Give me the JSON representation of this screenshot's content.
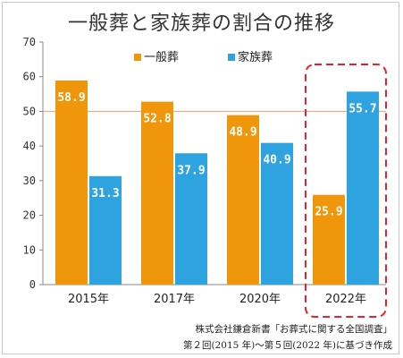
{
  "chart_data": {
    "type": "bar",
    "title": "一般葬と家族葬の割合の推移",
    "categories": [
      "2015年",
      "2017年",
      "2020年",
      "2022年"
    ],
    "series": [
      {
        "name": "一般葬",
        "values": [
          58.9,
          52.8,
          48.9,
          25.9
        ],
        "color": "#f0960a"
      },
      {
        "name": "家族葬",
        "values": [
          31.3,
          37.9,
          40.9,
          55.7
        ],
        "color": "#2ea3df"
      }
    ],
    "data_labels": {
      "一般葬": [
        "58.9",
        "52.8",
        "48.9",
        "25.9"
      ],
      "家族葬": [
        "31.3",
        "37.9",
        "40.9",
        "55.7"
      ]
    },
    "ylim": [
      0,
      70
    ],
    "yticks": [
      "0",
      "10",
      "20",
      "30",
      "40",
      "50",
      "60",
      "70"
    ],
    "reference_line": {
      "value": 50,
      "color": "#e8a070"
    },
    "highlight": {
      "category": "2022年",
      "color": "#e8212a",
      "style": "dashed"
    },
    "legend_position": "top",
    "grid": false,
    "xlabel": "",
    "ylabel": ""
  },
  "source_note": {
    "line1": "株式会社鎌倉新書「お葬式に関する全国調査」",
    "line2": "第２回(2015 年)～第５回(2022 年)に基づき作成"
  }
}
